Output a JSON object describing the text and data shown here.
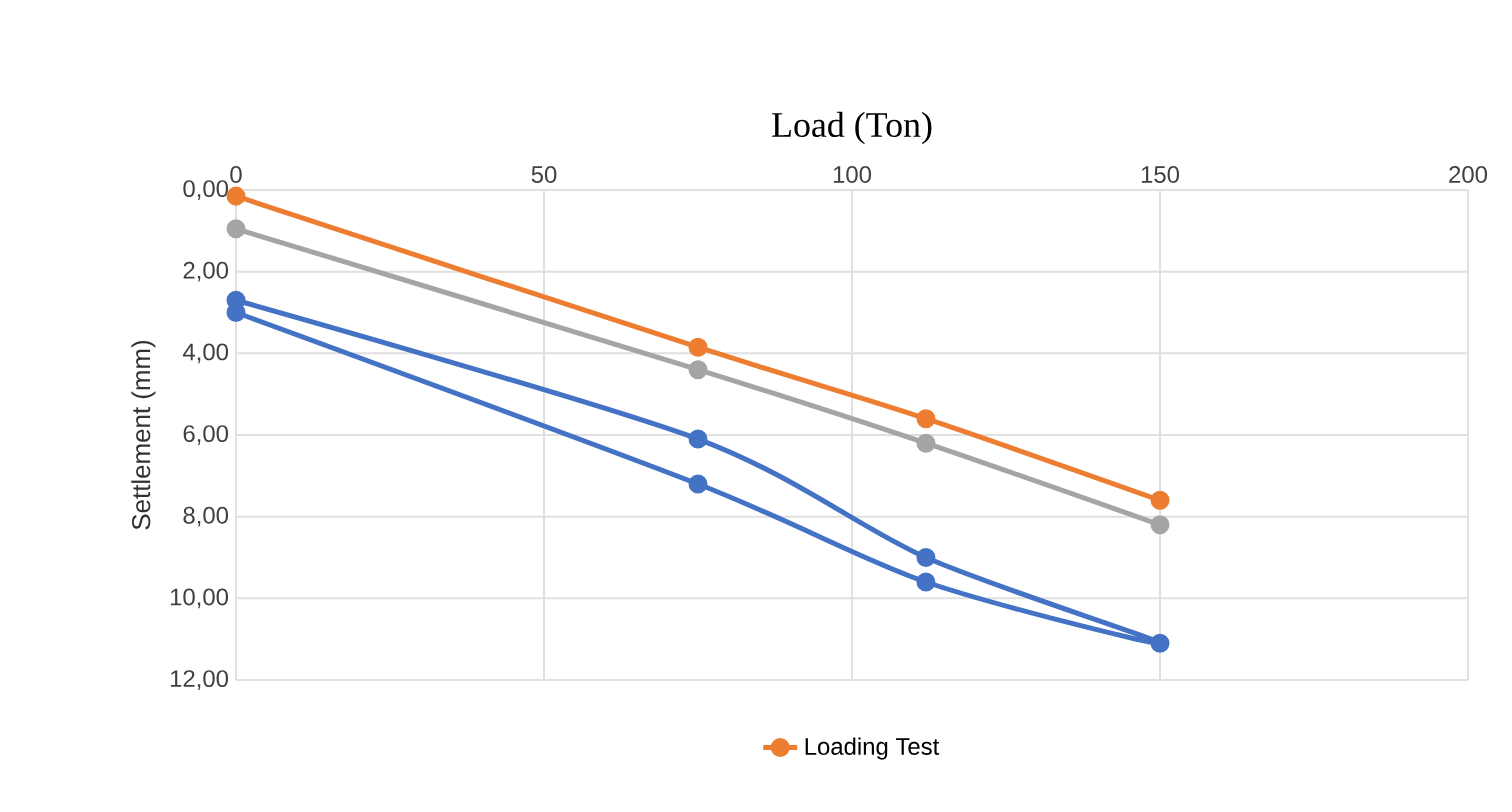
{
  "chart_data": {
    "type": "line",
    "xlabel": "Load (Ton)",
    "ylabel": "Settlement   (mm)",
    "x": [
      0,
      75,
      112,
      150
    ],
    "xlim": [
      0,
      200
    ],
    "xticks": [
      0,
      50,
      100,
      150,
      200
    ],
    "ylim": [
      12,
      0
    ],
    "yticks": [
      {
        "value": 0,
        "label": "0,00"
      },
      {
        "value": 2,
        "label": "2,00"
      },
      {
        "value": 4,
        "label": "4,00"
      },
      {
        "value": 6,
        "label": "6,00"
      },
      {
        "value": 8,
        "label": "8,00"
      },
      {
        "value": 10,
        "label": "10,00"
      },
      {
        "value": 12,
        "label": "12,00"
      }
    ],
    "grid": true,
    "legend": "bottom",
    "marker": "circle",
    "line_style": "solid",
    "series": [
      {
        "color": "#4472c4",
        "x": [
          0,
          75,
          112,
          150,
          112,
          75,
          0
        ],
        "values": [
          2.7,
          6.1,
          9.0,
          11.1,
          9.6,
          7.2,
          3.0
        ]
      },
      {
        "name": "Loading Test",
        "color": "#ed7d31",
        "values": [
          0.15,
          3.85,
          5.6,
          7.6
        ]
      },
      {
        "color": "#a5a5a5",
        "values": [
          0.95,
          4.4,
          6.2,
          8.2
        ]
      }
    ]
  }
}
